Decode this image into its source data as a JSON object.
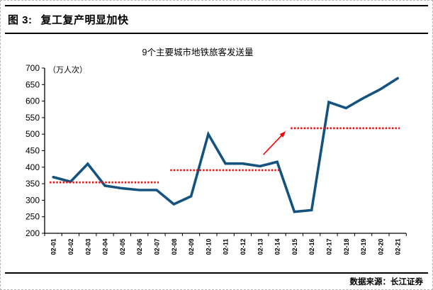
{
  "figure": {
    "label": "图 3:",
    "title": "复工复产明显加快",
    "source_label": "数据来源：长江证券"
  },
  "chart_data": {
    "type": "line",
    "title": "9个主要城市地铁旅客发送量",
    "unit_label": "（万人次）",
    "categories": [
      "02-01",
      "02-02",
      "02-03",
      "02-04",
      "02-05",
      "02-06",
      "02-07",
      "02-08",
      "02-09",
      "02-10",
      "02-11",
      "02-12",
      "02-13",
      "02-14",
      "02-15",
      "02-16",
      "02-17",
      "02-18",
      "02-19",
      "02-20",
      "02-21"
    ],
    "values": [
      370,
      356,
      410,
      344,
      336,
      331,
      331,
      288,
      312,
      500,
      411,
      411,
      403,
      416,
      265,
      270,
      597,
      579,
      609,
      636,
      669
    ],
    "ylim": [
      200,
      700
    ],
    "yticks": [
      200,
      250,
      300,
      350,
      400,
      450,
      500,
      550,
      600,
      650,
      700
    ],
    "grid": "off",
    "legend": "none",
    "series_color": "#14537f",
    "annotation_color": "#fe0000",
    "average_lines": [
      {
        "start": "02-01",
        "end": "02-07",
        "value": 354
      },
      {
        "start": "02-08",
        "end": "02-14",
        "value": 391
      },
      {
        "start": "02-15",
        "end": "02-21",
        "value": 518
      }
    ],
    "arrow": {
      "from": {
        "category_index": 12.2,
        "value": 438
      },
      "to": {
        "category_index": 13.5,
        "value": 509
      }
    }
  }
}
